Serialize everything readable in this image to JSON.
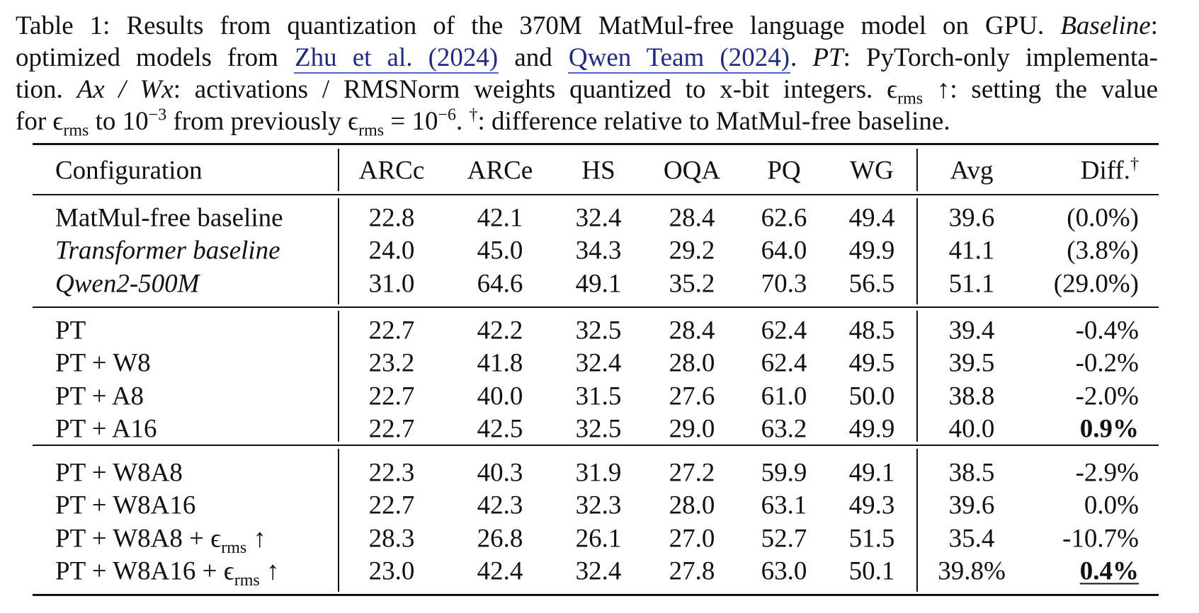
{
  "caption": {
    "line1": [
      "Table 1: Results from quantization of the 370M MatMul-free language model on GPU. ",
      "Baseline",
      ":"
    ],
    "line2": [
      "optimized models from ",
      "Zhu et al. (2024)",
      " and ",
      "Qwen Team (2024)",
      ". ",
      "PT",
      ": PyTorch-only implementa-"
    ],
    "line3": [
      "tion. ",
      "Ax / Wx",
      ": activations / RMSNorm weights quantized to x-bit integers. ",
      "ϵ",
      "rms",
      " ↑: setting the value"
    ],
    "line4": [
      "for ",
      "ϵ",
      "rms",
      " to 10",
      "−3",
      " from previously ",
      "ϵ",
      "rms",
      " = 10",
      "−6",
      ". ",
      "†",
      ": difference relative to MatMul-free baseline."
    ]
  },
  "table": {
    "header": [
      "Configuration",
      "ARCc",
      "ARCe",
      "HS",
      "OQA",
      "PQ",
      "WG",
      "Avg",
      "Diff."
    ],
    "header_mark": "†",
    "groups": [
      {
        "rows": [
          {
            "config": "MatMul-free baseline",
            "values": [
              "22.8",
              "42.1",
              "32.4",
              "28.4",
              "62.6",
              "49.4",
              "39.6",
              "(0.0%)"
            ]
          },
          {
            "config": "Transformer baseline",
            "italic": true,
            "values": [
              "24.0",
              "45.0",
              "34.3",
              "29.2",
              "64.0",
              "49.9",
              "41.1",
              "(3.8%)"
            ]
          },
          {
            "config": "Qwen2-500M",
            "italic": true,
            "values": [
              "31.0",
              "64.6",
              "49.1",
              "35.2",
              "70.3",
              "56.5",
              "51.1",
              "(29.0%)"
            ]
          }
        ]
      },
      {
        "rows": [
          {
            "config": "PT",
            "values": [
              "22.7",
              "42.2",
              "32.5",
              "28.4",
              "62.4",
              "48.5",
              "39.4",
              "-0.4%"
            ]
          },
          {
            "config": "PT + W8",
            "values": [
              "23.2",
              "41.8",
              "32.4",
              "28.0",
              "62.4",
              "49.5",
              "39.5",
              "-0.2%"
            ]
          },
          {
            "config": "PT + A8",
            "values": [
              "22.7",
              "40.0",
              "31.5",
              "27.6",
              "61.0",
              "50.0",
              "38.8",
              "-2.0%"
            ]
          },
          {
            "config": "PT + A16",
            "values": [
              "22.7",
              "42.5",
              "32.5",
              "29.0",
              "63.2",
              "49.9",
              "40.0",
              "0.9%"
            ],
            "emphasis": "bold"
          }
        ]
      },
      {
        "rows": [
          {
            "config": "PT + W8A8",
            "values": [
              "22.3",
              "40.3",
              "31.9",
              "27.2",
              "59.9",
              "49.1",
              "38.5",
              "-2.9%"
            ]
          },
          {
            "config": "PT + W8A16",
            "values": [
              "22.7",
              "42.3",
              "32.3",
              "28.0",
              "63.1",
              "49.3",
              "39.6",
              "0.0%"
            ]
          },
          {
            "config": "PT + W8A8 + ",
            "symbol": "ϵ",
            "subscript": "rms",
            "arrow": " ↑",
            "values": [
              "28.3",
              "26.8",
              "26.1",
              "27.0",
              "52.7",
              "51.5",
              "35.4",
              "-10.7%"
            ]
          },
          {
            "config": "PT + W8A16 + ",
            "symbol": "ϵ",
            "subscript": "rms",
            "arrow": " ↑",
            "values": [
              "23.0",
              "42.4",
              "32.4",
              "27.8",
              "63.0",
              "50.1",
              "39.8%",
              "0.4%"
            ],
            "emphasis": "bold-underline"
          }
        ]
      }
    ]
  }
}
